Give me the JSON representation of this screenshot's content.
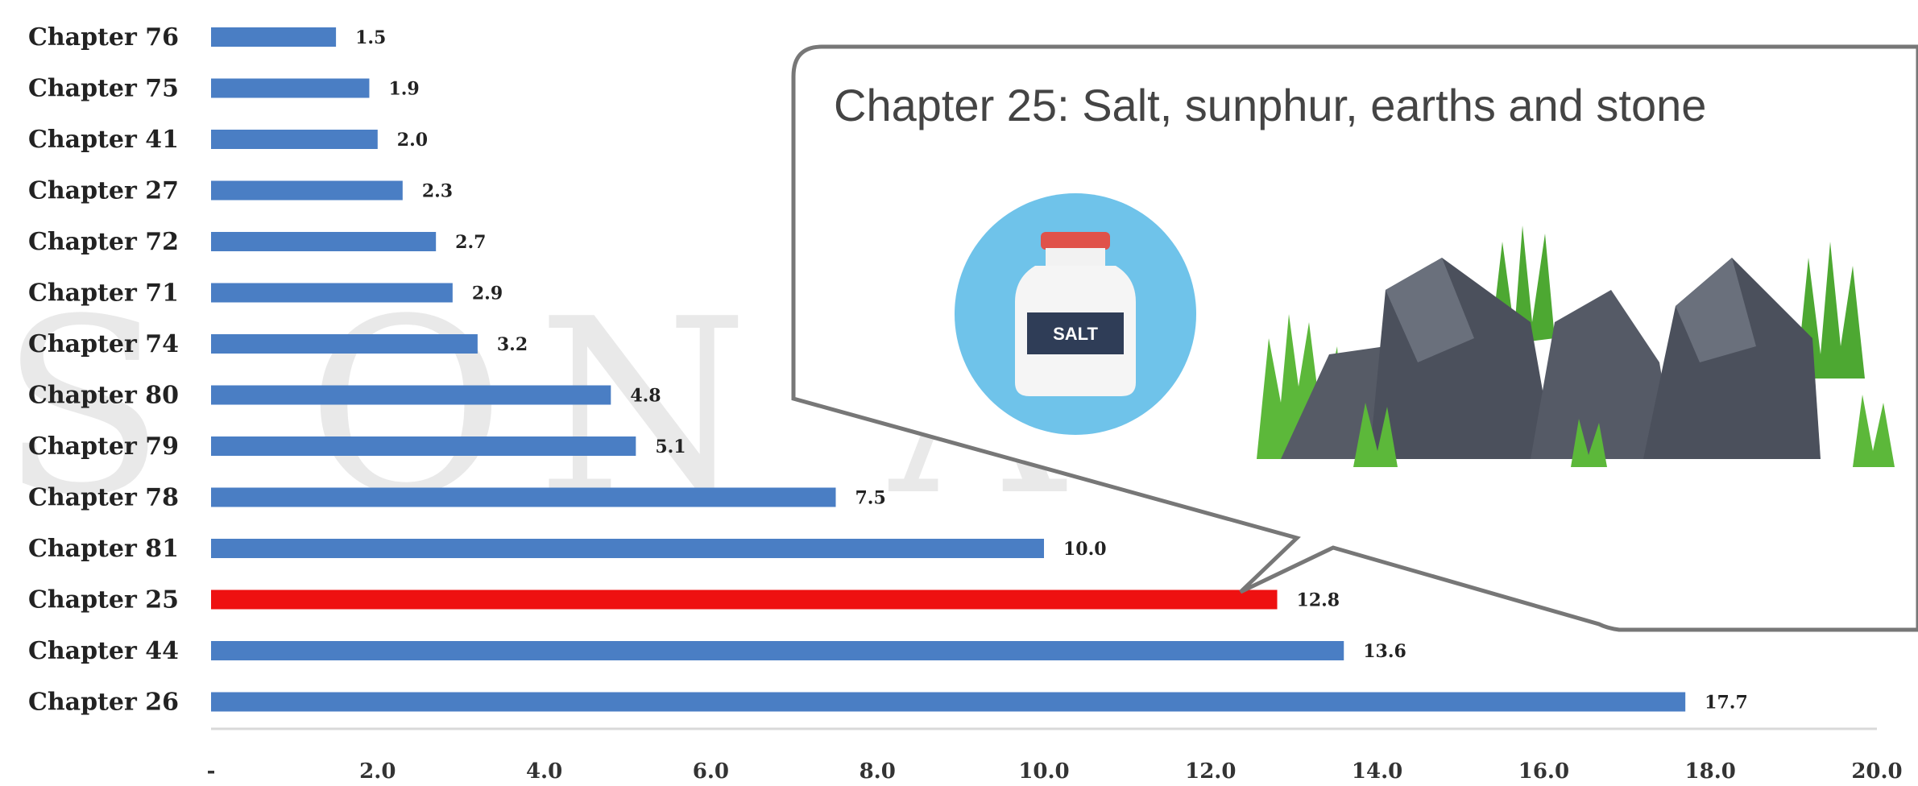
{
  "chart_data": {
    "type": "bar",
    "orientation": "horizontal",
    "categories": [
      "Chapter 76",
      "Chapter 75",
      "Chapter 41",
      "Chapter 27",
      "Chapter 72",
      "Chapter 71",
      "Chapter 74",
      "Chapter 80",
      "Chapter 79",
      "Chapter 78",
      "Chapter 81",
      "Chapter 25",
      "Chapter 44",
      "Chapter 26"
    ],
    "values": [
      1.5,
      1.9,
      2.0,
      2.3,
      2.7,
      2.9,
      3.2,
      4.8,
      5.1,
      7.5,
      10.0,
      12.8,
      13.6,
      17.7
    ],
    "value_labels": [
      "1.5",
      "1.9",
      "2.0",
      "2.3",
      "2.7",
      "2.9",
      "3.2",
      "4.8",
      "5.1",
      "7.5",
      "10.0",
      "12.8",
      "13.6",
      "17.7"
    ],
    "highlight_index": 11,
    "xlim": [
      0,
      20
    ],
    "x_ticks": [
      "-",
      "2.0",
      "4.0",
      "6.0",
      "8.0",
      "10.0",
      "12.0",
      "14.0",
      "16.0",
      "18.0",
      "20.0"
    ],
    "title": "",
    "xlabel": "",
    "ylabel": "",
    "grid": false,
    "colors": {
      "bar": "#4a7ec4",
      "highlight": "#ee1111",
      "axis": "#d9d9d9"
    }
  },
  "callout": {
    "title": "Chapter 25: Salt, sunphur, earths and stone",
    "salt_label": "SALT"
  },
  "watermark": "S ON ACA   IV"
}
